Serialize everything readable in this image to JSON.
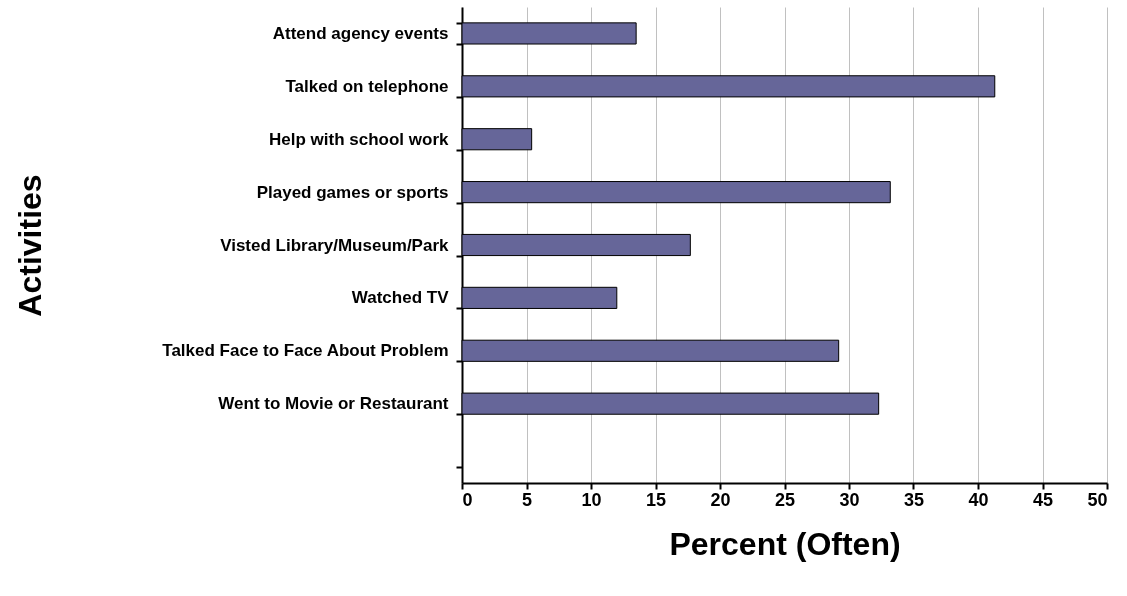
{
  "chart_data": {
    "type": "bar",
    "orientation": "horizontal",
    "xlabel": "Percent (Often)",
    "ylabel": "Activities",
    "categories": [
      "Attend agency events",
      "Talked on telephone",
      "Help with school work",
      "Played games or sports",
      "Visted Library/Museum/Park",
      "Watched TV",
      "Talked Face to Face About Problem",
      "Went to Movie or Restaurant",
      null
    ],
    "values": [
      13.5,
      41.3,
      5.4,
      33.2,
      17.7,
      12.0,
      29.2,
      32.3,
      null
    ],
    "color": "#666699",
    "xlim": [
      0,
      50
    ],
    "xticks": [
      0,
      5,
      10,
      15,
      20,
      25,
      30,
      35,
      40,
      45,
      50
    ],
    "grid": "x"
  }
}
